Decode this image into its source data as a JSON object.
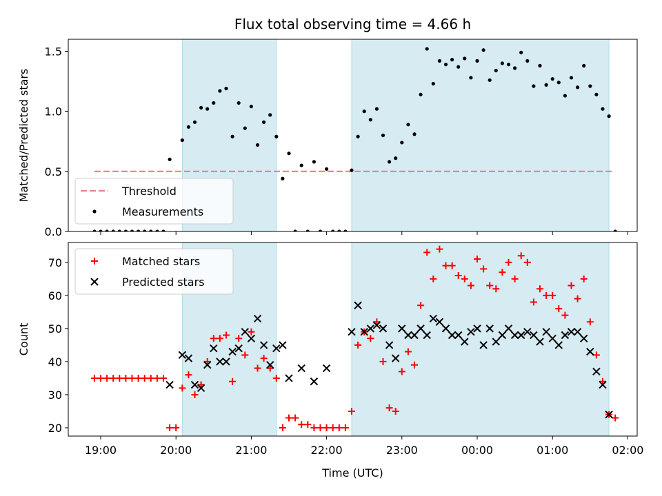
{
  "chart_data": [
    {
      "type": "scatter",
      "title": "Flux total observing time = 4.66 h",
      "ylabel": "Matched/Predicted stars",
      "xlabel": "",
      "ylim": [
        0,
        1.6
      ],
      "yticks": [
        {
          "value": 0.0,
          "label": "0.0"
        },
        {
          "value": 0.5,
          "label": "0.5"
        },
        {
          "value": 1.0,
          "label": "1.0"
        },
        {
          "value": 1.5,
          "label": "1.5"
        }
      ],
      "threshold": {
        "name": "Threshold",
        "value": 0.5,
        "color": "#f08080",
        "style": "dashed"
      },
      "legend": {
        "placement": "lower-left",
        "entries": [
          "Threshold",
          "Measurements"
        ]
      },
      "shaded_spans": [
        [
          "20:05",
          "21:20"
        ],
        [
          "22:20",
          "01:45"
        ]
      ],
      "series": [
        {
          "name": "Measurements",
          "color": "#000000",
          "marker": "dot",
          "x": [
            "18:55",
            "19:00",
            "19:05",
            "19:10",
            "19:15",
            "19:20",
            "19:25",
            "19:30",
            "19:35",
            "19:40",
            "19:45",
            "19:50",
            "19:55",
            "20:00",
            "20:05",
            "20:10",
            "20:15",
            "20:20",
            "20:25",
            "20:30",
            "20:35",
            "20:40",
            "20:45",
            "20:50",
            "20:55",
            "21:00",
            "21:05",
            "21:10",
            "21:15",
            "21:20",
            "21:25",
            "21:30",
            "21:35",
            "21:40",
            "21:45",
            "21:50",
            "21:55",
            "22:00",
            "22:05",
            "22:10",
            "22:15",
            "22:20",
            "22:25",
            "22:30",
            "22:35",
            "22:40",
            "22:45",
            "22:50",
            "22:55",
            "23:00",
            "23:05",
            "23:10",
            "23:15",
            "23:20",
            "23:25",
            "23:30",
            "23:35",
            "23:40",
            "23:45",
            "23:50",
            "23:55",
            "00:00",
            "00:05",
            "00:10",
            "00:15",
            "00:20",
            "00:25",
            "00:30",
            "00:35",
            "00:40",
            "00:45",
            "00:50",
            "00:55",
            "01:00",
            "01:05",
            "01:10",
            "01:15",
            "01:20",
            "01:25",
            "01:30",
            "01:35",
            "01:40",
            "01:45",
            "01:50"
          ],
          "y": [
            0,
            0,
            0,
            0,
            0,
            0,
            0,
            0,
            0,
            0,
            0,
            0,
            0.6,
            null,
            0.76,
            0.87,
            0.91,
            1.03,
            1.02,
            1.07,
            1.17,
            1.19,
            0.79,
            1.07,
            0.86,
            1.04,
            0.72,
            0.91,
            0.97,
            0.79,
            0.44,
            0.65,
            0,
            0.55,
            0,
            0.58,
            0,
            0.52,
            0,
            0,
            0,
            0.51,
            0.79,
            1.0,
            0.93,
            1.02,
            0.8,
            0.58,
            0.61,
            0.74,
            0.89,
            0.81,
            1.14,
            1.52,
            1.23,
            1.42,
            1.39,
            1.43,
            1.37,
            1.44,
            1.28,
            1.42,
            1.51,
            1.26,
            1.34,
            1.4,
            1.39,
            1.36,
            1.49,
            1.42,
            1.21,
            1.38,
            1.22,
            1.27,
            1.24,
            1.13,
            1.28,
            1.2,
            1.38,
            1.21,
            1.14,
            1.02,
            0.96,
            0
          ]
        }
      ]
    },
    {
      "type": "scatter",
      "title": "",
      "ylabel": "Count",
      "xlabel": "Time (UTC)",
      "ylim": [
        17.5,
        76
      ],
      "yticks": [
        {
          "value": 20,
          "label": "20"
        },
        {
          "value": 30,
          "label": "30"
        },
        {
          "value": 40,
          "label": "40"
        },
        {
          "value": 50,
          "label": "50"
        },
        {
          "value": 60,
          "label": "60"
        },
        {
          "value": 70,
          "label": "70"
        }
      ],
      "xticks": [
        {
          "value": "19:00",
          "label": "19:00"
        },
        {
          "value": "20:00",
          "label": "20:00"
        },
        {
          "value": "21:00",
          "label": "21:00"
        },
        {
          "value": "22:00",
          "label": "22:00"
        },
        {
          "value": "23:00",
          "label": "23:00"
        },
        {
          "value": "00:00",
          "label": "00:00"
        },
        {
          "value": "01:00",
          "label": "01:00"
        },
        {
          "value": "02:00",
          "label": "02:00"
        }
      ],
      "legend": {
        "placement": "top-left",
        "entries": [
          "Matched stars",
          "Predicted stars"
        ]
      },
      "shaded_spans": [
        [
          "20:05",
          "21:20"
        ],
        [
          "22:20",
          "01:45"
        ]
      ],
      "series": [
        {
          "name": "Matched stars",
          "color": "#ff0000",
          "marker": "plus",
          "x": [
            "18:55",
            "19:00",
            "19:05",
            "19:10",
            "19:15",
            "19:20",
            "19:25",
            "19:30",
            "19:35",
            "19:40",
            "19:45",
            "19:50",
            "19:55",
            "20:00",
            "20:05",
            "20:10",
            "20:15",
            "20:20",
            "20:25",
            "20:30",
            "20:35",
            "20:40",
            "20:45",
            "20:50",
            "20:55",
            "21:00",
            "21:05",
            "21:10",
            "21:15",
            "21:20",
            "21:25",
            "21:30",
            "21:35",
            "21:40",
            "21:45",
            "21:50",
            "21:55",
            "22:00",
            "22:05",
            "22:10",
            "22:15",
            "22:20",
            "22:25",
            "22:30",
            "22:35",
            "22:40",
            "22:45",
            "22:50",
            "22:55",
            "23:00",
            "23:05",
            "23:10",
            "23:15",
            "23:20",
            "23:25",
            "23:30",
            "23:35",
            "23:40",
            "23:45",
            "23:50",
            "23:55",
            "00:00",
            "00:05",
            "00:10",
            "00:15",
            "00:20",
            "00:25",
            "00:30",
            "00:35",
            "00:40",
            "00:45",
            "00:50",
            "00:55",
            "01:00",
            "01:05",
            "01:10",
            "01:15",
            "01:20",
            "01:25",
            "01:30",
            "01:35",
            "01:40",
            "01:45",
            "01:50"
          ],
          "y": [
            35,
            35,
            35,
            35,
            35,
            35,
            35,
            35,
            35,
            35,
            35,
            35,
            20,
            20,
            32,
            36,
            30,
            33,
            40,
            47,
            47,
            48,
            34,
            47,
            42,
            49,
            38,
            41,
            38,
            35,
            20,
            23,
            23,
            21,
            21,
            20,
            20,
            20,
            20,
            20,
            20,
            25,
            45,
            49,
            47,
            52,
            40,
            26,
            25,
            37,
            43,
            39,
            57,
            73,
            65,
            74,
            69,
            69,
            66,
            65,
            63,
            71,
            68,
            63,
            62,
            67,
            70,
            65,
            72,
            70,
            58,
            62,
            60,
            60,
            56,
            54,
            63,
            59,
            65,
            52,
            42,
            34,
            24,
            23
          ]
        },
        {
          "name": "Predicted stars",
          "color": "#000000",
          "marker": "x",
          "x": [
            "19:55",
            "20:05",
            "20:10",
            "20:15",
            "20:20",
            "20:25",
            "20:30",
            "20:35",
            "20:40",
            "20:45",
            "20:50",
            "20:55",
            "21:00",
            "21:05",
            "21:10",
            "21:15",
            "21:20",
            "21:25",
            "21:30",
            "21:40",
            "21:50",
            "22:00",
            "22:20",
            "22:25",
            "22:30",
            "22:35",
            "22:40",
            "22:45",
            "22:50",
            "22:55",
            "23:00",
            "23:05",
            "23:10",
            "23:15",
            "23:20",
            "23:25",
            "23:30",
            "23:35",
            "23:40",
            "23:45",
            "23:50",
            "23:55",
            "00:00",
            "00:05",
            "00:10",
            "00:15",
            "00:20",
            "00:25",
            "00:30",
            "00:35",
            "00:40",
            "00:45",
            "00:50",
            "00:55",
            "01:00",
            "01:05",
            "01:10",
            "01:15",
            "01:20",
            "01:25",
            "01:30",
            "01:35",
            "01:40",
            "01:45"
          ],
          "y": [
            33,
            42,
            41,
            33,
            32,
            39,
            44,
            40,
            40,
            43,
            44,
            49,
            47,
            53,
            45,
            39,
            44,
            45,
            35,
            38,
            34,
            38,
            49,
            57,
            49,
            50,
            51,
            50,
            45,
            41,
            50,
            48,
            48,
            50,
            48,
            53,
            52,
            50,
            48,
            48,
            46,
            49,
            50,
            45,
            50,
            46,
            48,
            50,
            48,
            48,
            49,
            48,
            46,
            49,
            47,
            45,
            48,
            49,
            49,
            47,
            43,
            37,
            33,
            24
          ]
        }
      ]
    }
  ]
}
